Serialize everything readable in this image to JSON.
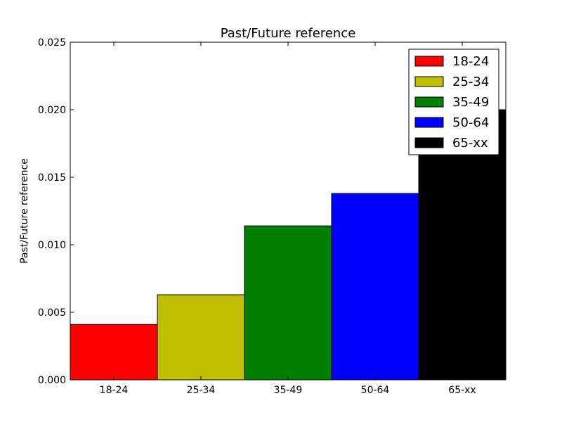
{
  "chart_data": {
    "type": "bar",
    "title": "Past/Future reference",
    "xlabel": "",
    "ylabel": "Past/Future reference",
    "categories": [
      "18-24",
      "25-34",
      "35-49",
      "50-64",
      "65-xx"
    ],
    "values": [
      0.0041,
      0.0063,
      0.0114,
      0.0138,
      0.02
    ],
    "colors": [
      "#ff0000",
      "#bfbf00",
      "#008000",
      "#0000ff",
      "#000000"
    ],
    "ylim": [
      0,
      0.025
    ],
    "yticks": [
      "0.000",
      "0.005",
      "0.010",
      "0.015",
      "0.020",
      "0.025"
    ],
    "legend": {
      "placement": "top-right",
      "entries": [
        "18-24",
        "25-34",
        "35-49",
        "50-64",
        "65-xx"
      ]
    },
    "grid": false
  }
}
